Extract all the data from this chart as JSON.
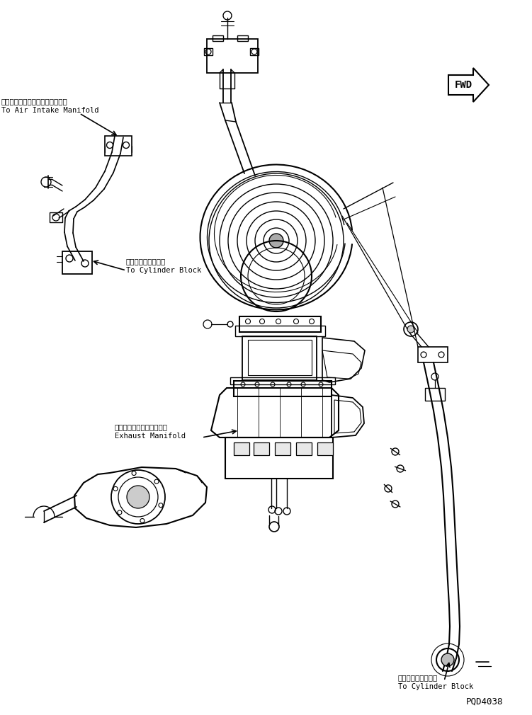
{
  "bg_color": "#ffffff",
  "line_color": "#000000",
  "figsize": [
    7.51,
    10.1
  ],
  "dpi": 100,
  "labels": {
    "air_intake_jp": "エアーインテークマニホールドへ",
    "air_intake_en": "To Air Intake Manifold",
    "cylinder_block_jp1": "シリンダブロックへ",
    "cylinder_block_en1": "To Cylinder Block",
    "exhaust_jp": "エキゾーストマニホールド",
    "exhaust_en": "Exhaust Manifold",
    "cylinder_block_jp2": "シリンダブロックへ",
    "cylinder_block_en2": "To Cylinder Block",
    "part_num": "PQD4038",
    "fwd": "FWD"
  }
}
